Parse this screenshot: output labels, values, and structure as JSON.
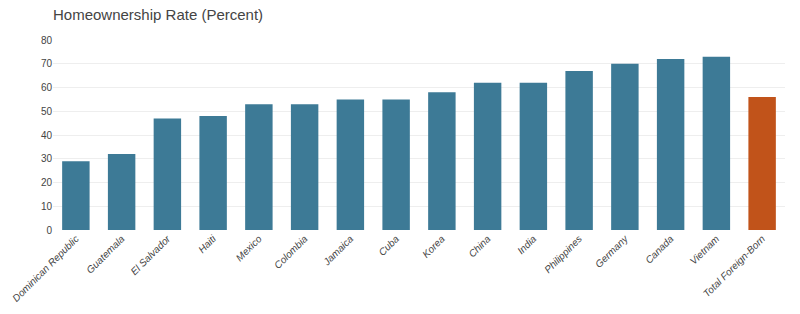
{
  "chart_data": {
    "type": "bar",
    "title": "Homeownership Rate (Percent)",
    "categories": [
      "Dominican Republic",
      "Guatemala",
      "El Salvador",
      "Haiti",
      "Mexico",
      "Colombia",
      "Jamaica",
      "Cuba",
      "Korea",
      "China",
      "India",
      "Philippines",
      "Germany",
      "Canada",
      "Vietnam",
      "Total Foreign-Born"
    ],
    "values": [
      29,
      32,
      47,
      48,
      53,
      53,
      55,
      55,
      58,
      62,
      62,
      67,
      70,
      72,
      73,
      56
    ],
    "colors": [
      "#3d7a96",
      "#3d7a96",
      "#3d7a96",
      "#3d7a96",
      "#3d7a96",
      "#3d7a96",
      "#3d7a96",
      "#3d7a96",
      "#3d7a96",
      "#3d7a96",
      "#3d7a96",
      "#3d7a96",
      "#3d7a96",
      "#3d7a96",
      "#3d7a96",
      "#c1531a"
    ],
    "ylim": [
      0,
      80
    ],
    "yticks": [
      0,
      10,
      20,
      30,
      40,
      50,
      60,
      70,
      80
    ],
    "grid": true
  }
}
